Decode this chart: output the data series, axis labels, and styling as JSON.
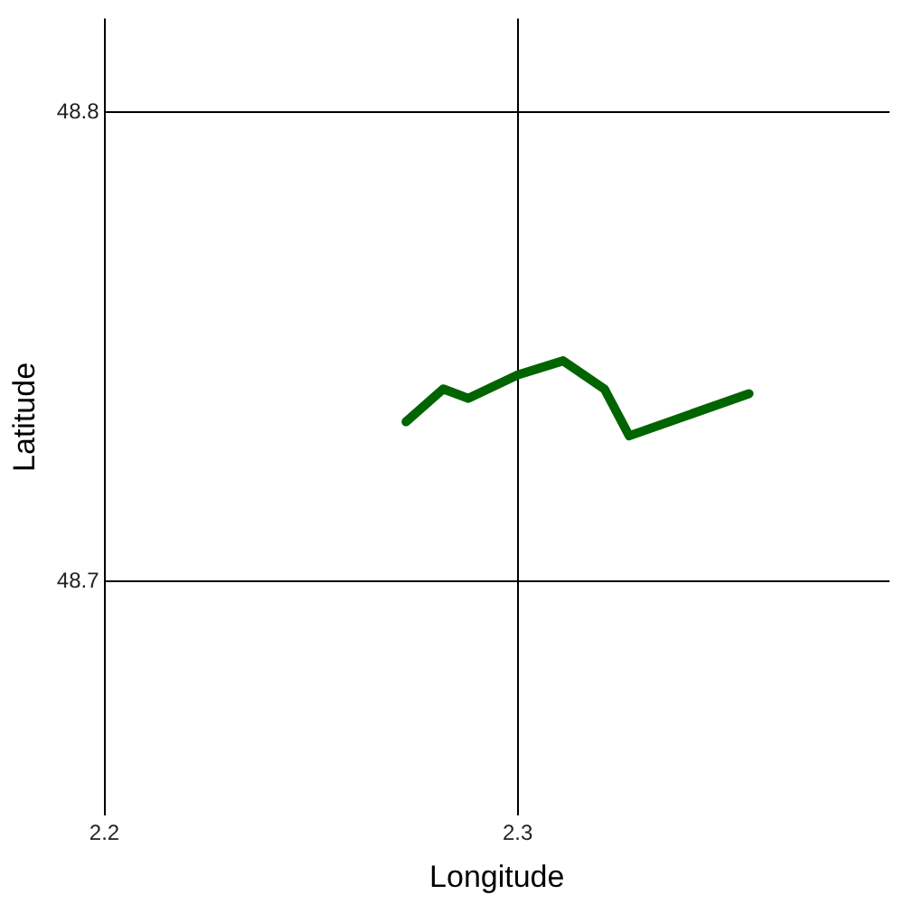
{
  "chart_data": {
    "type": "line",
    "xlabel": "Longitude",
    "ylabel": "Latitude",
    "x": [
      2.273,
      2.282,
      2.288,
      2.3,
      2.311,
      2.321,
      2.327,
      2.356
    ],
    "series": [
      {
        "color": "#006400",
        "values": [
          48.734,
          48.741,
          48.739,
          48.744,
          48.747,
          48.741,
          48.731,
          48.74
        ]
      }
    ],
    "xlim": [
      2.2,
      2.39
    ],
    "ylim": [
      48.65,
      48.82
    ],
    "xticks": [
      2.2,
      2.3
    ],
    "yticks": [
      48.7,
      48.8
    ],
    "grid": true,
    "legend": false,
    "marker": "none",
    "line_style": "solid"
  }
}
